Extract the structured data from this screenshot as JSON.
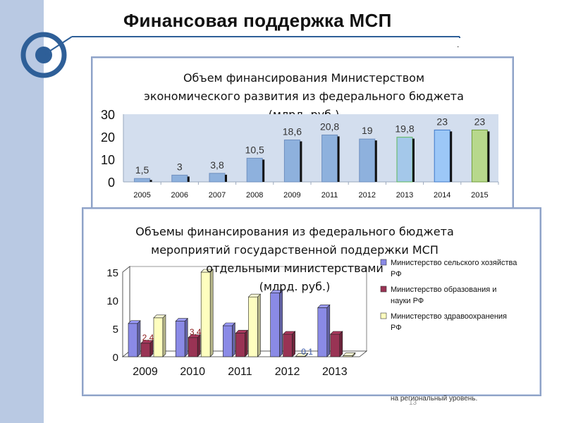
{
  "slide": {
    "title": "Финансовая поддержка МСП",
    "page_number": "13",
    "footer_text": "на региональный уровень."
  },
  "colors": {
    "sidebar": "#b9c9e3",
    "accent": "#2e5f98",
    "bar_default": "#8eb1dd",
    "bar_2013": "#a4c8ea",
    "bar_2014": "#9cc7f7",
    "bar_2015": "#b7d88c",
    "series_agriculture": "#8a8ae6",
    "series_education": "#993354",
    "series_health": "#fefebf"
  },
  "chart_data": [
    {
      "type": "bar",
      "title": "Объем финансирования Министерством экономического развития из федерального бюджета (млрд. руб.)",
      "title_lines": [
        "Объем финансирования Министерством",
        "экономического развития из федерального бюджета",
        "(млрд. руб.)"
      ],
      "categories": [
        "2005",
        "2006",
        "2007",
        "2008",
        "2009",
        "2011",
        "2012",
        "2013",
        "2014",
        "2015"
      ],
      "values": [
        1.5,
        3,
        3.8,
        10.5,
        18.6,
        20.8,
        19,
        19.8,
        23,
        23
      ],
      "value_labels": [
        "1,5",
        "3",
        "3,8",
        "10,5",
        "18,6",
        "20,8",
        "19",
        "19,8",
        "23",
        "23"
      ],
      "ylim": [
        0,
        30
      ],
      "yticks": [
        "0",
        "10",
        "20",
        "30"
      ],
      "grid": false
    },
    {
      "type": "bar",
      "title": "Объемы финансирования из федерального бюджета мероприятий государственной поддержки МСП отдельными министерствами (млрд. руб.)",
      "title_lines": [
        "Объемы финансирования из федерального бюджета",
        "мероприятий государственной поддержки МСП",
        "отдельными министерствами",
        "(млрд. руб.)"
      ],
      "categories": [
        "2009",
        "2010",
        "2011",
        "2012",
        "2013"
      ],
      "series": [
        {
          "name": "Министерство сельского хозяйства РФ",
          "legend_lines": [
            "Министерство сельского хозяйства",
            "РФ"
          ],
          "values": [
            5.9,
            6.3,
            5.5,
            11.3,
            8.7
          ]
        },
        {
          "name": "Министерство образования и науки РФ",
          "legend_lines": [
            "Министерство образования и",
            "науки РФ"
          ],
          "values": [
            2.4,
            3.4,
            4.2,
            4.0,
            4.0
          ]
        },
        {
          "name": "Министерство здравоохранения РФ",
          "legend_lines": [
            "Министерство здравоохранения",
            "РФ"
          ],
          "values": [
            6.9,
            15.0,
            10.6,
            0.1,
            0.2
          ]
        }
      ],
      "data_labels": [
        "2,4",
        "3,4",
        "0,1"
      ],
      "ylim": [
        0,
        15
      ],
      "yticks": [
        "0",
        "5",
        "10",
        "15"
      ],
      "legend_position": "right",
      "grid": false
    }
  ]
}
